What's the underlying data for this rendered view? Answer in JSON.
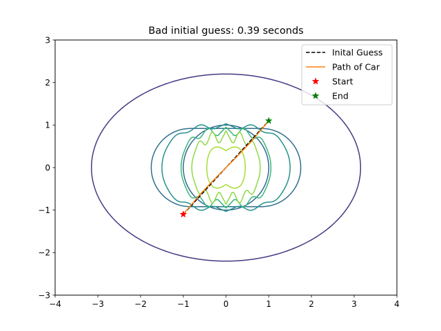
{
  "chart_data": {
    "type": "line",
    "title": "Bad initial guess: 0.39 seconds",
    "xlim": [
      -4,
      4
    ],
    "ylim": [
      -3,
      3
    ],
    "x_ticks": [
      -4,
      -3,
      -2,
      -1,
      0,
      1,
      2,
      3,
      4
    ],
    "y_ticks": [
      -3,
      -2,
      -1,
      0,
      1,
      2,
      3
    ],
    "x_tick_labels": [
      "−4",
      "−3",
      "−2",
      "−1",
      "0",
      "1",
      "2",
      "3",
      "4"
    ],
    "y_tick_labels": [
      "−3",
      "−2",
      "−1",
      "0",
      "1",
      "2",
      "3"
    ],
    "grid": false,
    "legend_position": "top-right",
    "legend": [
      {
        "label": "Inital Guess",
        "kind": "dashed-line",
        "color": "#000000"
      },
      {
        "label": "Path of Car",
        "kind": "line",
        "color": "#ff7f0e"
      },
      {
        "label": "Start",
        "kind": "star",
        "color": "#ff0000"
      },
      {
        "label": "End",
        "kind": "star",
        "color": "#008000"
      }
    ],
    "series": [
      {
        "name": "Inital Guess",
        "style": "dashed",
        "color": "#000000",
        "x": [
          -1.0,
          1.0
        ],
        "y": [
          -1.1,
          1.1
        ]
      },
      {
        "name": "Path of Car",
        "style": "solid",
        "color": "#ff7f0e",
        "x": [
          -1.0,
          -0.6,
          -0.2,
          0.2,
          0.6,
          1.0
        ],
        "y": [
          -1.1,
          -0.62,
          -0.2,
          0.2,
          0.62,
          1.1
        ]
      }
    ],
    "markers": [
      {
        "name": "Start",
        "x": -1.0,
        "y": -1.1,
        "color": "#ff0000"
      },
      {
        "name": "End",
        "x": 1.0,
        "y": 1.1,
        "color": "#008000"
      }
    ],
    "contours": [
      {
        "level": 1,
        "color": "#443983",
        "shape": "ellipse",
        "rx": 3.15,
        "ry": 2.2
      },
      {
        "level": 2,
        "color": "#31688e",
        "shape": "stadium",
        "cx": 1.0,
        "r": 1.0
      },
      {
        "level": 3,
        "color": "#2e6f8e",
        "shape": "stadium",
        "cx": 1.0,
        "r": 0.92,
        "ry": 0.92,
        "half_width": 1.75
      },
      {
        "level": 4,
        "color": "#21918c",
        "shape": "wavy",
        "a": 1.5,
        "b": 0.97,
        "wave": 0.06
      },
      {
        "level": 5,
        "color": "#35b779",
        "shape": "wavy",
        "a": 1.05,
        "b": 0.85,
        "wave": 0.1
      },
      {
        "level": 6,
        "color": "#90d743",
        "shape": "wavy",
        "a": 0.8,
        "b": 0.72,
        "wave": 0.14
      },
      {
        "level": 7,
        "color": "#a8db34",
        "shape": "bowtie",
        "a": 0.45,
        "b": 0.72
      }
    ]
  }
}
